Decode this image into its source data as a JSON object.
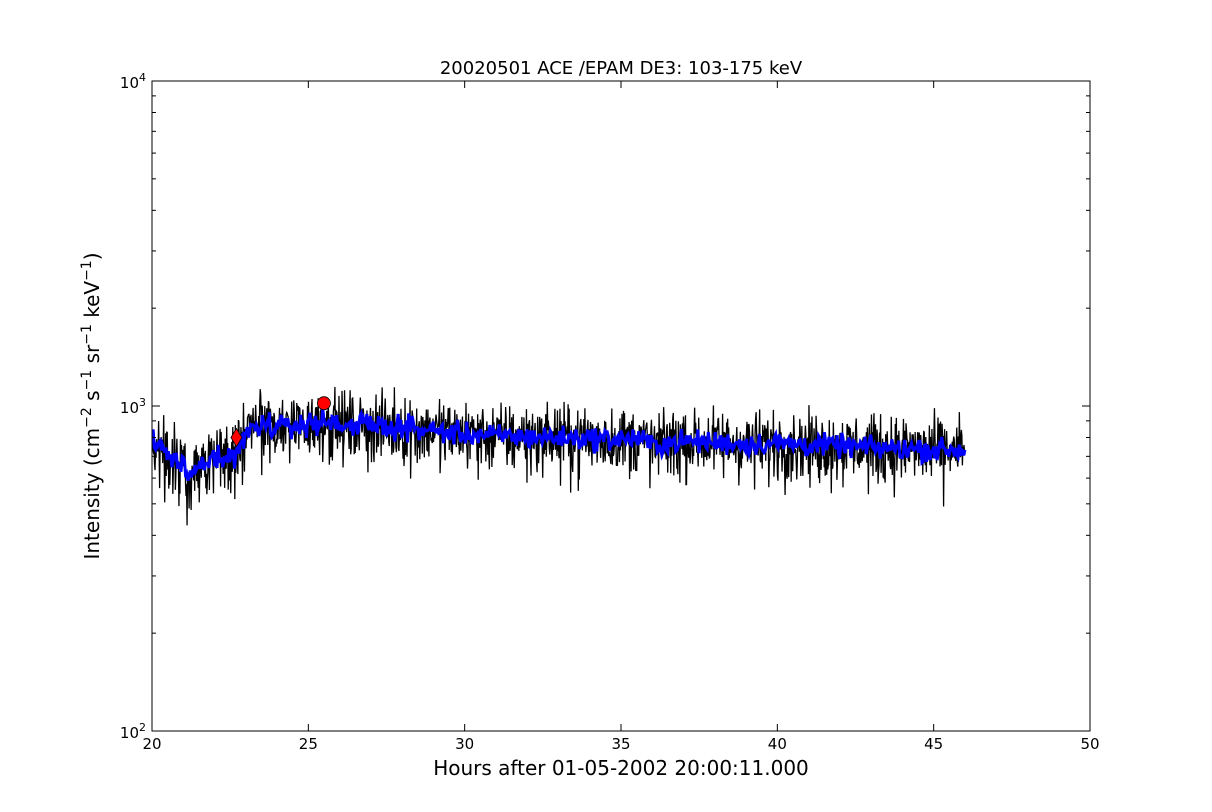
{
  "chart_data": {
    "type": "line",
    "title": "20020501 ACE /EPAM DE3: 103-175 keV",
    "xlabel": "Hours after 01-05-2002 20:00:11.000",
    "ylabel": {
      "base": "Intensity (cm",
      "parts": [
        {
          "sup": "−2"
        },
        {
          "text": " s"
        },
        {
          "sup": "−1"
        },
        {
          "text": " sr"
        },
        {
          "sup": "−1"
        },
        {
          "text": " keV"
        },
        {
          "sup": "−1"
        },
        {
          "text": ")"
        }
      ]
    },
    "xlim": [
      20,
      50
    ],
    "ylim": [
      100,
      10000
    ],
    "yscale": "log",
    "xticks": [
      "20",
      "25",
      "30",
      "35",
      "40",
      "45",
      "50"
    ],
    "yticks": [
      {
        "base": "10",
        "exp": "2",
        "value": 100
      },
      {
        "base": "10",
        "exp": "3",
        "value": 1000
      },
      {
        "base": "10",
        "exp": "4",
        "value": 10000
      }
    ],
    "grid": false,
    "colors": {
      "raw": "#000000",
      "smoothed": "#0000ff",
      "marker": "#ff0000"
    },
    "series": [
      {
        "role": "raw",
        "x": [
          20.0,
          20.5,
          21.0,
          21.2,
          21.5,
          22.0,
          22.5,
          22.8,
          23.0,
          23.5,
          24.0,
          24.5,
          25.0,
          25.5,
          26.0,
          27.0,
          28.0,
          29.0,
          30.0,
          31.0,
          32.0,
          33.0,
          34.0,
          35.0,
          35.5,
          36.0,
          37.0,
          38.0,
          39.0,
          40.0,
          41.0,
          42.0,
          43.0,
          44.0,
          45.0,
          46.0
        ],
        "y": [
          780,
          720,
          650,
          600,
          680,
          700,
          690,
          740,
          830,
          880,
          860,
          870,
          880,
          900,
          880,
          870,
          860,
          840,
          820,
          810,
          805,
          800,
          795,
          790,
          800,
          760,
          780,
          775,
          765,
          770,
          760,
          755,
          745,
          740,
          735,
          730
        ],
        "noise": 0.12
      },
      {
        "role": "smoothed",
        "x": [
          20.0,
          20.5,
          21.0,
          21.2,
          21.5,
          22.0,
          22.5,
          22.8,
          23.0,
          23.5,
          24.0,
          24.5,
          25.0,
          25.5,
          26.0,
          27.0,
          28.0,
          29.0,
          30.0,
          31.0,
          32.0,
          33.0,
          34.0,
          35.0,
          35.5,
          36.0,
          37.0,
          38.0,
          39.0,
          40.0,
          41.0,
          42.0,
          43.0,
          44.0,
          45.0,
          46.0
        ],
        "y": [
          780,
          720,
          650,
          600,
          680,
          700,
          690,
          740,
          830,
          880,
          860,
          870,
          880,
          900,
          880,
          870,
          860,
          840,
          820,
          810,
          805,
          800,
          795,
          790,
          800,
          760,
          780,
          775,
          765,
          770,
          760,
          755,
          745,
          740,
          735,
          730
        ],
        "noise": 0.04
      }
    ],
    "markers": [
      {
        "shape": "diamond",
        "x": 22.7,
        "y": 800
      },
      {
        "shape": "circle",
        "x": 25.5,
        "y": 1020
      }
    ]
  }
}
